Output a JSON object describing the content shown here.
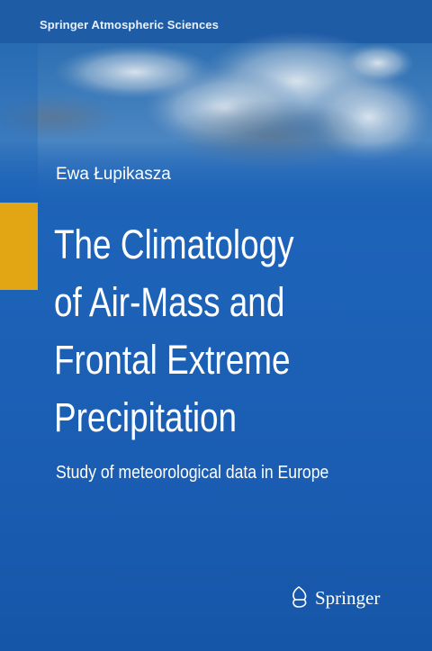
{
  "series": "Springer Atmospheric Sciences",
  "author": "Ewa Łupikasza",
  "title_lines": [
    "The Climatology",
    "of Air-Mass and",
    "Frontal Extreme",
    "Precipitation"
  ],
  "subtitle": "Study of meteorological data in Europe",
  "publisher": "Springer"
}
